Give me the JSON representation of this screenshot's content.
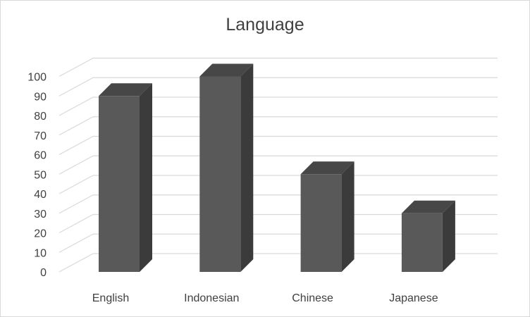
{
  "chart_data": {
    "type": "bar",
    "title": "Language",
    "categories": [
      "English",
      "Indonesian",
      "Chinese",
      "Japanese"
    ],
    "values": [
      90,
      100,
      50,
      30
    ],
    "ylim": [
      0,
      100
    ],
    "yticks": [
      0,
      10,
      20,
      30,
      40,
      50,
      60,
      70,
      80,
      90,
      100
    ],
    "xlabel": "",
    "ylabel": "",
    "grid": true,
    "legend": "none",
    "style": "3d-column",
    "colors": {
      "bar_front": "#595959",
      "bar_side": "#3b3b3b",
      "bar_top": "#474747",
      "grid": "#d9d9d9",
      "text": "#404040"
    }
  }
}
